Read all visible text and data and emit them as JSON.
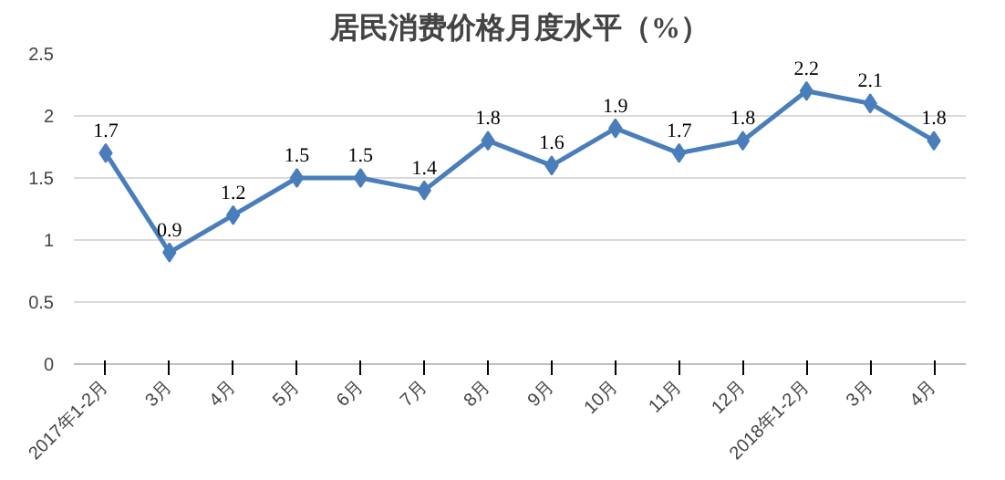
{
  "chart_data": {
    "type": "line",
    "title": "居民消费价格月度水平（%）",
    "categories": [
      "2017年1-2月",
      "3月",
      "4月",
      "5月",
      "6月",
      "7月",
      "8月",
      "9月",
      "10月",
      "11月",
      "12月",
      "2018年1-2月",
      "3月",
      "4月"
    ],
    "series": [
      {
        "color": "#4a7ebb",
        "values": [
          1.7,
          0.9,
          1.2,
          1.5,
          1.5,
          1.4,
          1.8,
          1.6,
          1.9,
          1.7,
          1.8,
          2.2,
          2.1,
          1.8
        ]
      }
    ],
    "ylim": [
      0,
      2.5
    ],
    "yticks": [
      0,
      0.5,
      1,
      1.5,
      2,
      2.5
    ],
    "grid": "y",
    "marker": "diamond",
    "line_style": "solid",
    "data_labels": true
  }
}
